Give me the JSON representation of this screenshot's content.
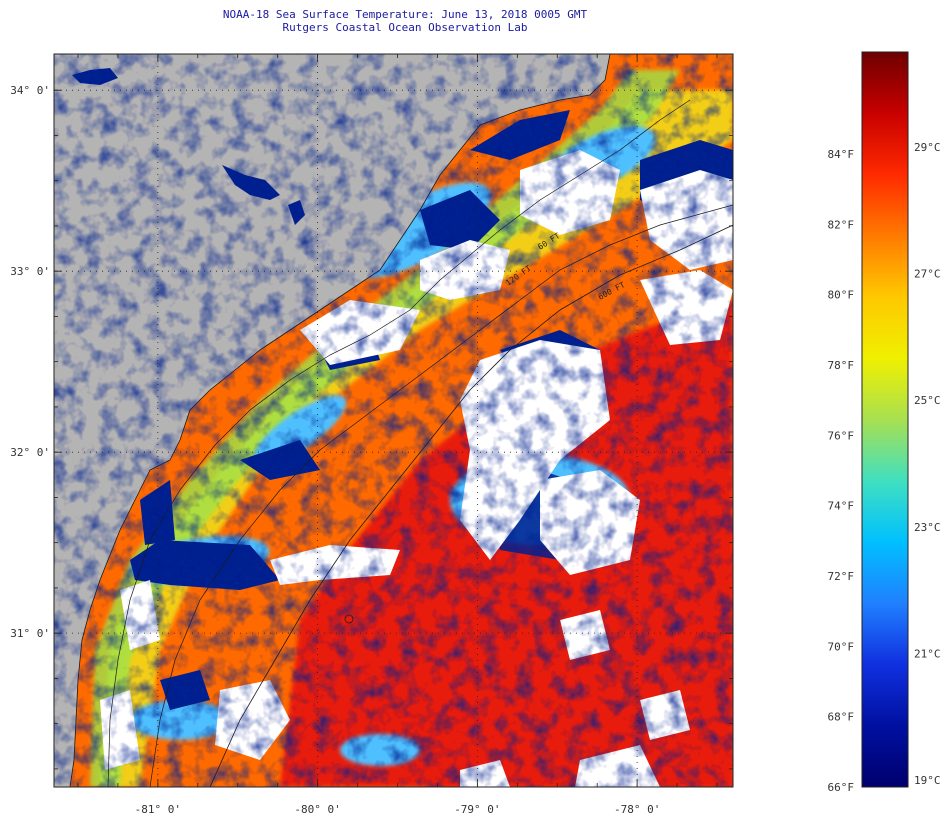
{
  "header": {
    "title": "NOAA-18 Sea Surface Temperature:  June 13, 2018 0005 GMT",
    "subtitle": "Rutgers Coastal Ocean Observation Lab"
  },
  "map": {
    "lon_range": [
      -81.65,
      -77.4
    ],
    "lat_range": [
      30.15,
      34.2
    ],
    "lat_labels": [
      {
        "value": 34,
        "text": "34° 0'"
      },
      {
        "value": 33,
        "text": "33° 0'"
      },
      {
        "value": 32,
        "text": "32° 0'"
      },
      {
        "value": 31,
        "text": "31° 0'"
      }
    ],
    "lon_labels": [
      {
        "value": -81,
        "text": "-81° 0'"
      },
      {
        "value": -80,
        "text": "-80° 0'"
      },
      {
        "value": -79,
        "text": "-79° 0'"
      },
      {
        "value": -78,
        "text": "-78° 0'"
      }
    ],
    "contour_labels": [
      "120 FT",
      "600 FT",
      "60 FT"
    ],
    "colors": {
      "land": "#b4b4b4",
      "cloud": "#ffffff",
      "cold": "#00208f",
      "warm": "#ff6a00",
      "hot": "#e81e0a",
      "cool": "#4fc0ff",
      "mild": "#f0e01a",
      "green": "#9ee34a"
    }
  },
  "colorbar": {
    "fahrenheit": [
      "84°F",
      "82°F",
      "80°F",
      "78°F",
      "76°F",
      "74°F",
      "72°F",
      "70°F",
      "68°F",
      "66°F"
    ],
    "celsius": [
      "29°C",
      "27°C",
      "25°C",
      "23°C",
      "21°C",
      "19°C"
    ],
    "stops": [
      "#6e0000",
      "#c80000",
      "#ff2a00",
      "#ff7a00",
      "#ffc800",
      "#f0f000",
      "#a8e050",
      "#40e0c0",
      "#00c0ff",
      "#2080ff",
      "#1030e0",
      "#0010a0",
      "#00006e"
    ]
  }
}
